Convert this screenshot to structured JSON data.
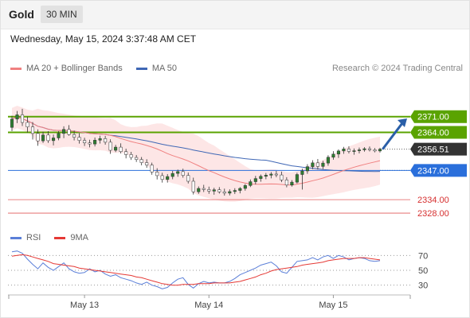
{
  "header": {
    "title": "Gold",
    "interval": "30 MIN",
    "timestamp": "Wednesday, May 15, 2024 3:37:48 AM CET"
  },
  "legend": {
    "ma20": "MA 20 + Bollinger Bands",
    "ma50": "MA 50",
    "credit": "Research © 2024 Trading Central"
  },
  "colors": {
    "candle": "#2e7d32",
    "ma20": "#f08080",
    "band": "#fde0e0",
    "ma50": "#3f67b5",
    "resistance": "#5aa300",
    "pivot": "#2a6fdb",
    "support": "#e05a5a",
    "arrow": "#2a5fa8",
    "rsi": "#5b7fd8",
    "rsi_ma": "#e53935"
  },
  "chart_data": [
    {
      "type": "candlestick",
      "title": "Gold 30 MIN",
      "x_labels": [
        "May 13",
        "May 14",
        "May 15"
      ],
      "ylim": [
        2322,
        2384
      ],
      "ohlc": [
        [
          2366.2,
          2371.4,
          2364.5,
          2369.9
        ],
        [
          2369.9,
          2373.5,
          2368.1,
          2371.8
        ],
        [
          2371.8,
          2374.5,
          2366.8,
          2368.4
        ],
        [
          2368.4,
          2371.0,
          2363.9,
          2366.4
        ],
        [
          2366.4,
          2368.6,
          2360.8,
          2363.5
        ],
        [
          2363.5,
          2365.3,
          2358.0,
          2360.2
        ],
        [
          2360.2,
          2364.3,
          2359.3,
          2362.8
        ],
        [
          2362.8,
          2364.5,
          2359.3,
          2360.3
        ],
        [
          2360.3,
          2363.0,
          2358.2,
          2361.5
        ],
        [
          2361.5,
          2364.5,
          2360.5,
          2363.5
        ],
        [
          2363.5,
          2366.7,
          2361.4,
          2365.3
        ],
        [
          2365.3,
          2367.2,
          2362.5,
          2363.0
        ],
        [
          2363.0,
          2364.8,
          2360.4,
          2361.8
        ],
        [
          2361.8,
          2363.6,
          2359.0,
          2360.4
        ],
        [
          2360.4,
          2361.6,
          2357.9,
          2359.3
        ],
        [
          2359.3,
          2360.7,
          2357.3,
          2358.8
        ],
        [
          2358.8,
          2361.7,
          2357.7,
          2360.5
        ],
        [
          2360.5,
          2362.5,
          2359.0,
          2361.2
        ],
        [
          2361.2,
          2362.4,
          2358.5,
          2359.6
        ],
        [
          2359.6,
          2360.9,
          2354.4,
          2356.0
        ],
        [
          2356.0,
          2358.4,
          2355.2,
          2357.4
        ],
        [
          2357.4,
          2359.1,
          2354.6,
          2355.4
        ],
        [
          2355.4,
          2356.7,
          2352.4,
          2354.1
        ],
        [
          2354.1,
          2355.3,
          2351.7,
          2352.8
        ],
        [
          2352.8,
          2353.9,
          2350.8,
          2351.9
        ],
        [
          2351.9,
          2353.0,
          2349.3,
          2350.5
        ],
        [
          2350.5,
          2352.0,
          2348.2,
          2349.4
        ],
        [
          2349.4,
          2350.5,
          2345.1,
          2346.3
        ],
        [
          2346.3,
          2348.0,
          2343.0,
          2344.7
        ],
        [
          2344.7,
          2346.0,
          2341.6,
          2343.0
        ],
        [
          2343.0,
          2345.4,
          2341.6,
          2344.3
        ],
        [
          2344.3,
          2346.8,
          2343.1,
          2345.7
        ],
        [
          2345.7,
          2347.4,
          2344.2,
          2346.5
        ],
        [
          2346.5,
          2347.8,
          2343.8,
          2344.8
        ],
        [
          2344.8,
          2346.1,
          2341.2,
          2342.2
        ],
        [
          2342.2,
          2343.8,
          2336.3,
          2337.5
        ],
        [
          2337.5,
          2339.9,
          2336.6,
          2339.0
        ],
        [
          2339.0,
          2340.6,
          2337.4,
          2338.5
        ],
        [
          2338.5,
          2339.8,
          2336.6,
          2337.8
        ],
        [
          2337.8,
          2339.3,
          2336.2,
          2338.4
        ],
        [
          2338.4,
          2339.6,
          2336.7,
          2337.5
        ],
        [
          2337.5,
          2338.9,
          2335.8,
          2336.9
        ],
        [
          2336.9,
          2338.6,
          2335.9,
          2337.6
        ],
        [
          2337.6,
          2339.1,
          2336.5,
          2338.1
        ],
        [
          2338.1,
          2339.6,
          2336.8,
          2339.0
        ],
        [
          2339.0,
          2341.0,
          2338.0,
          2340.3
        ],
        [
          2340.3,
          2343.0,
          2339.6,
          2342.0
        ],
        [
          2342.0,
          2344.6,
          2340.8,
          2343.4
        ],
        [
          2343.4,
          2345.2,
          2342.0,
          2344.4
        ],
        [
          2344.4,
          2345.9,
          2343.1,
          2344.9
        ],
        [
          2344.9,
          2346.3,
          2343.5,
          2345.4
        ],
        [
          2345.4,
          2346.8,
          2344.0,
          2345.0
        ],
        [
          2345.0,
          2346.5,
          2341.8,
          2342.8
        ],
        [
          2342.8,
          2344.0,
          2339.5,
          2340.5
        ],
        [
          2340.5,
          2342.7,
          2339.8,
          2341.8
        ],
        [
          2341.8,
          2346.0,
          2341.2,
          2345.2
        ],
        [
          2345.2,
          2347.8,
          2338.5,
          2346.8
        ],
        [
          2346.8,
          2349.8,
          2345.5,
          2348.7
        ],
        [
          2348.7,
          2351.6,
          2347.6,
          2350.4
        ],
        [
          2350.4,
          2352.1,
          2347.4,
          2348.8
        ],
        [
          2348.8,
          2351.3,
          2347.6,
          2350.3
        ],
        [
          2350.3,
          2353.8,
          2349.1,
          2352.9
        ],
        [
          2352.9,
          2355.6,
          2351.8,
          2354.3
        ],
        [
          2354.3,
          2356.4,
          2352.6,
          2355.7
        ],
        [
          2355.7,
          2357.5,
          2354.4,
          2356.6
        ],
        [
          2356.6,
          2357.8,
          2354.6,
          2355.5
        ],
        [
          2355.5,
          2356.8,
          2354.0,
          2355.8
        ],
        [
          2355.8,
          2357.2,
          2354.6,
          2356.2
        ],
        [
          2356.2,
          2357.4,
          2355.4,
          2356.7
        ],
        [
          2356.7,
          2357.7,
          2355.5,
          2356.2
        ],
        [
          2356.2,
          2357.0,
          2355.1,
          2355.7
        ],
        [
          2355.7,
          2357.1,
          2355.0,
          2356.5
        ]
      ],
      "levels": [
        {
          "label": "2371.00",
          "value": 2371.0,
          "kind": "resistance"
        },
        {
          "label": "2364.00",
          "value": 2364.0,
          "kind": "resistance"
        },
        {
          "label": "2356.51",
          "value": 2356.51,
          "kind": "last"
        },
        {
          "label": "2347.00",
          "value": 2347.0,
          "kind": "pivot"
        },
        {
          "label": "2334.00",
          "value": 2334.0,
          "kind": "support"
        },
        {
          "label": "2328.00",
          "value": 2328.0,
          "kind": "support"
        }
      ]
    },
    {
      "type": "line",
      "legend": [
        "RSI",
        "9MA"
      ],
      "ylim": [
        20,
        80
      ],
      "y_ticks": [
        30,
        50,
        70
      ],
      "rsi": [
        75,
        76,
        73,
        65,
        58,
        52,
        60,
        54,
        50,
        55,
        60,
        52,
        48,
        46,
        47,
        52,
        48,
        50,
        45,
        42,
        44,
        40,
        38,
        36,
        33,
        31,
        34,
        30,
        28,
        25,
        27,
        33,
        38,
        40,
        31,
        26,
        32,
        35,
        33,
        34,
        33,
        33,
        35,
        39,
        44,
        47,
        50,
        53,
        57,
        59,
        61,
        56,
        48,
        46,
        54,
        62,
        63,
        64,
        67,
        64,
        68,
        70,
        66,
        70,
        68,
        64,
        66,
        67,
        66,
        63,
        62,
        63
      ],
      "rsi_ma": [
        69,
        70,
        71,
        70,
        68,
        66,
        64,
        62,
        59,
        58,
        57,
        56,
        55,
        53,
        52,
        51,
        50,
        49,
        48,
        47,
        46,
        45,
        44,
        43,
        41,
        40,
        38,
        36,
        34,
        32,
        31,
        30,
        30,
        31,
        31,
        31,
        32,
        32,
        32,
        33,
        33,
        33,
        33,
        34,
        35,
        37,
        39,
        41,
        44,
        46,
        49,
        51,
        52,
        53,
        54,
        55,
        57,
        58,
        59,
        60,
        61,
        63,
        64,
        65,
        66,
        66,
        66,
        67,
        67,
        66,
        65,
        64
      ]
    }
  ]
}
